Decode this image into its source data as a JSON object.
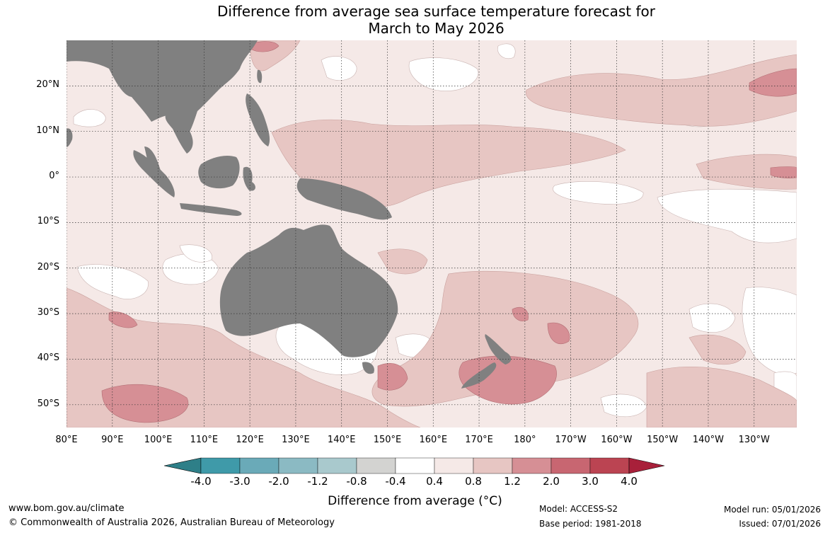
{
  "title": {
    "line1": "Difference from average sea surface temperature forecast for",
    "line2": "March to May 2026"
  },
  "map": {
    "latitude_labels": [
      "20°N",
      "10°N",
      "0°",
      "10°S",
      "20°S",
      "30°S",
      "40°S",
      "50°S"
    ],
    "latitude_values": [
      20,
      10,
      0,
      -10,
      -20,
      -30,
      -40,
      -50
    ],
    "longitude_labels": [
      "80°E",
      "90°E",
      "100°E",
      "110°E",
      "120°E",
      "130°E",
      "140°E",
      "150°E",
      "160°E",
      "170°E",
      "180°",
      "170°W",
      "160°W",
      "150°W",
      "140°W",
      "130°W"
    ],
    "longitude_values": [
      80,
      90,
      100,
      110,
      120,
      130,
      140,
      150,
      160,
      170,
      180,
      190,
      200,
      210,
      220,
      230
    ],
    "extent": {
      "lon_min": 80,
      "lon_max": 239.3,
      "lat_min": -55,
      "lat_max": 30
    },
    "land_color": "#808080",
    "anomaly_regions": [
      {
        "name": "equatorial-warm-band",
        "level": "0.8 to 1.2",
        "color": "#e7c6c3"
      },
      {
        "name": "new-zealand-warm-core",
        "level": "1.2 to 2.0",
        "color": "#d68f95"
      },
      {
        "name": "southern-indian-ocean-warm-core",
        "level": "1.2 to 2.0",
        "color": "#d68f95"
      },
      {
        "name": "southern-australia-neutral",
        "level": "-0.4 to 0.4",
        "color": "#ffffff"
      },
      {
        "name": "eastern-pacific-neutral",
        "level": "-0.4 to 0.4",
        "color": "#ffffff"
      }
    ]
  },
  "colorbar": {
    "ticks": [
      "-4.0",
      "-3.0",
      "-2.0",
      "-1.2",
      "-0.8",
      "-0.4",
      "0.4",
      "0.8",
      "1.2",
      "2.0",
      "3.0",
      "4.0"
    ],
    "colors": [
      "#3f9aa9",
      "#6aaab8",
      "#8bbac3",
      "#a9c9cd",
      "#d3d3d1",
      "#ffffff",
      "#f5e9e7",
      "#e7c6c3",
      "#d68f95",
      "#c86671",
      "#bb4452"
    ],
    "low_extend_color": "#2e7f88",
    "high_extend_color": "#a8203a",
    "label": "Difference from average (°C)"
  },
  "footer": {
    "website": "www.bom.gov.au/climate",
    "copyright": "© Commonwealth of Australia 2026, Australian Bureau of Meteorology",
    "model": "Model: ACCESS-S2",
    "base_period": "Base period: 1981-2018",
    "model_run": "Model run: 05/01/2026",
    "issued": "Issued: 07/01/2026"
  }
}
